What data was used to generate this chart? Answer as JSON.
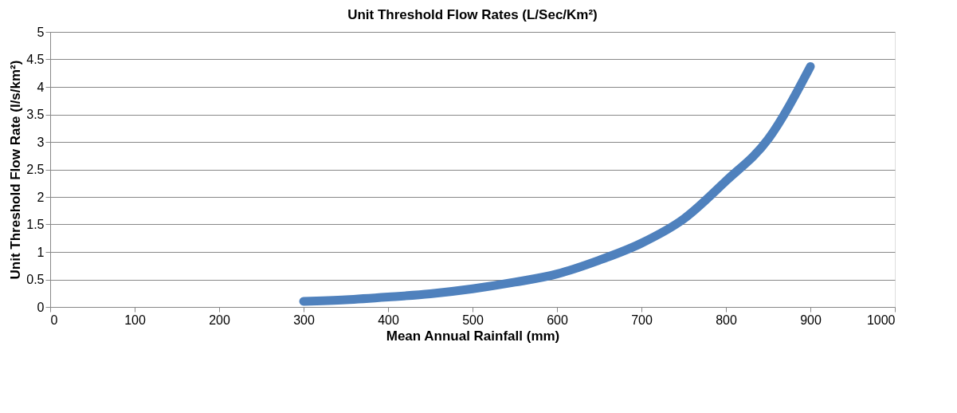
{
  "chart_data": {
    "type": "line",
    "title": "Unit Threshold Flow Rates (L/Sec/Km²)",
    "xlabel": "Mean Annual Rainfall (mm)",
    "ylabel": "Unit Threshold Flow Rate (l/s/km²)",
    "x": [
      300,
      350,
      400,
      450,
      500,
      550,
      600,
      650,
      700,
      750,
      800,
      850,
      900
    ],
    "series": [
      {
        "color": "#4f81bd",
        "values": [
          0.1,
          0.13,
          0.18,
          0.24,
          0.33,
          0.45,
          0.6,
          0.85,
          1.16,
          1.6,
          2.29,
          3.05,
          4.37
        ]
      }
    ],
    "xlim": [
      0,
      1000
    ],
    "xticks": [
      0,
      100,
      200,
      300,
      400,
      500,
      600,
      700,
      800,
      900,
      1000
    ],
    "ylim": [
      0,
      5
    ],
    "yticks": [
      0,
      0.5,
      1,
      1.5,
      2,
      2.5,
      3,
      3.5,
      4,
      4.5,
      5
    ],
    "grid": "y",
    "legend": false,
    "marker": "none",
    "line_style": "solid"
  }
}
